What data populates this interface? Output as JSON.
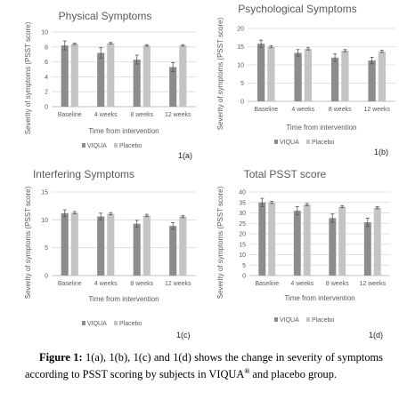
{
  "colors": {
    "viqua": "#8c8c8c",
    "placebo": "#c4c4c4",
    "grid": "#d9d9d9",
    "axis": "#bfbfbf",
    "error": "#555555"
  },
  "chart_data": [
    {
      "type": "bar",
      "title": "Physical Symptoms",
      "panel_label": "1(a)",
      "xlabel": "Time from intervention",
      "ylabel": "Severity of symptoms (PSST score)",
      "categories": [
        "Baseline",
        "4 weeks",
        "8 weeks",
        "12 weeks"
      ],
      "ylim": [
        0,
        10
      ],
      "yticks": [
        "0",
        "2",
        "4",
        "6",
        "8",
        "10"
      ],
      "grid": true,
      "legend_position": "bottom",
      "series": [
        {
          "name": "VIQUA",
          "values": [
            8.2,
            7.2,
            6.3,
            5.3
          ],
          "errors": [
            0.6,
            0.7,
            0.6,
            0.6
          ]
        },
        {
          "name": "Placebo",
          "values": [
            8.4,
            8.5,
            8.2,
            8.2
          ],
          "errors": [
            0.1,
            0.1,
            0.1,
            0.1
          ]
        }
      ]
    },
    {
      "type": "bar",
      "title": "Psychological Symptoms",
      "panel_label": "1(b)",
      "xlabel": "Time from intervention",
      "ylabel": "Severity of symptoms (PSST score)",
      "categories": [
        "Baseline",
        "4 weeks",
        "8 weeks",
        "12 weeks"
      ],
      "ylim": [
        0,
        20
      ],
      "yticks": [
        "0",
        "5",
        "10",
        "15",
        "20"
      ],
      "grid": true,
      "legend_position": "bottom",
      "series": [
        {
          "name": "VIQUA",
          "values": [
            15.8,
            13.3,
            12.0,
            11.2
          ],
          "errors": [
            1.0,
            0.9,
            1.0,
            0.9
          ]
        },
        {
          "name": "Placebo",
          "values": [
            15.0,
            14.4,
            13.9,
            13.7
          ],
          "errors": [
            0.3,
            0.3,
            0.3,
            0.3
          ]
        }
      ]
    },
    {
      "type": "bar",
      "title": "Interfering Symptoms",
      "panel_label": "1(c)",
      "xlabel": "Time from intervention",
      "ylabel": "Severity of symptoms (PSST score)",
      "categories": [
        "Baseline",
        "4 weeks",
        "8 weeks",
        "12 weeks"
      ],
      "ylim": [
        0,
        15
      ],
      "yticks": [
        "0",
        "5",
        "10",
        "15"
      ],
      "grid": true,
      "legend_position": "bottom",
      "series": [
        {
          "name": "VIQUA",
          "values": [
            11.2,
            10.6,
            9.3,
            8.9
          ],
          "errors": [
            0.6,
            0.6,
            0.6,
            0.6
          ]
        },
        {
          "name": "Placebo",
          "values": [
            11.3,
            11.1,
            10.8,
            10.6
          ],
          "errors": [
            0.2,
            0.2,
            0.2,
            0.2
          ]
        }
      ]
    },
    {
      "type": "bar",
      "title": "Total PSST score",
      "panel_label": "1(d)",
      "xlabel": "Time from intervention",
      "ylabel": "Severity of symptoms (PSST score)",
      "categories": [
        "Baseline",
        "4 weeks",
        "8 weeks",
        "12 weeks"
      ],
      "ylim": [
        0,
        40
      ],
      "yticks": [
        "0",
        "5",
        "10",
        "15",
        "20",
        "25",
        "30",
        "35",
        "40"
      ],
      "grid": true,
      "legend_position": "bottom",
      "series": [
        {
          "name": "VIQUA",
          "values": [
            35.0,
            31.0,
            27.5,
            25.5
          ],
          "errors": [
            2.0,
            2.0,
            2.0,
            2.0
          ]
        },
        {
          "name": "Placebo",
          "values": [
            35.0,
            34.0,
            33.0,
            32.5
          ],
          "errors": [
            0.5,
            0.5,
            0.5,
            0.5
          ]
        }
      ]
    }
  ],
  "caption": {
    "figure_label": "Figure 1:",
    "text_before_mark": "1(a), 1(b), 1(c) and 1(d) shows the change in severity of symptoms according to PSST scoring by subjects in VIQUA",
    "mark": "®",
    "text_after_mark": "and placebo group."
  }
}
